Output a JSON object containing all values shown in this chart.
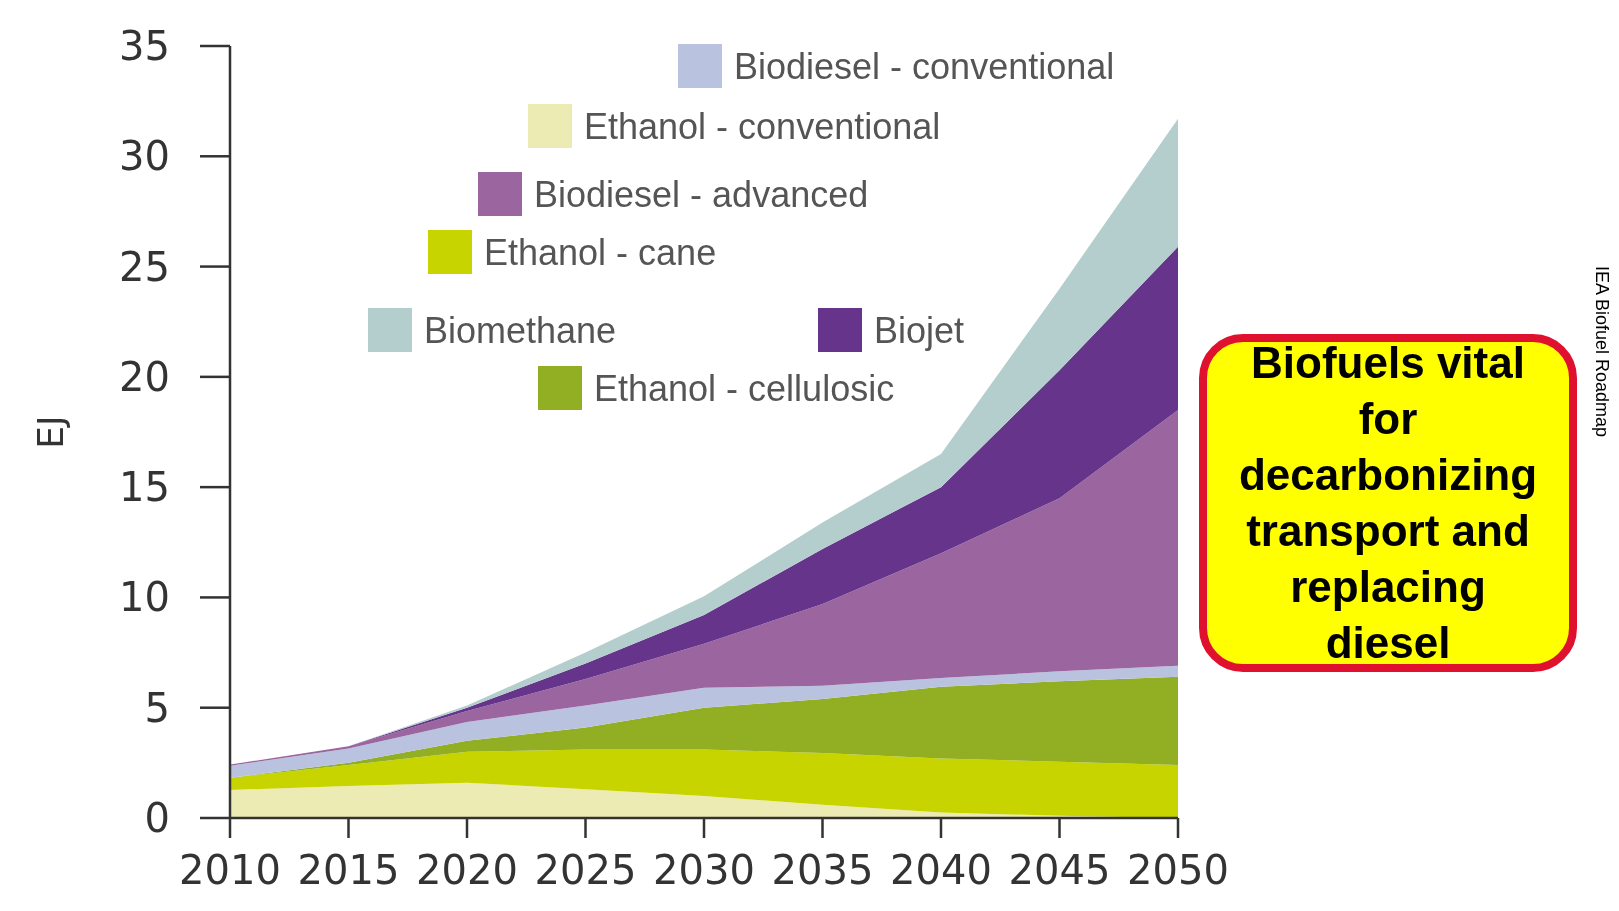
{
  "chart_data": {
    "type": "area",
    "stacked": true,
    "ylabel": "EJ",
    "x": [
      2010,
      2015,
      2020,
      2025,
      2030,
      2035,
      2040,
      2045,
      2050
    ],
    "xlim": [
      2010,
      2050
    ],
    "xticks": [
      2010,
      2015,
      2020,
      2025,
      2030,
      2035,
      2040,
      2045,
      2050
    ],
    "ylim": [
      0,
      35
    ],
    "yticks": [
      0,
      5,
      10,
      15,
      20,
      25,
      30,
      35
    ],
    "grid": false,
    "legend": "top",
    "series": [
      {
        "name": "Ethanol - conventional",
        "color": "#ecebb3",
        "values": [
          1.27,
          1.45,
          1.6,
          1.3,
          1.0,
          0.6,
          0.25,
          0.1,
          0
        ]
      },
      {
        "name": "Ethanol - cane",
        "color": "#c8d400",
        "values": [
          0.55,
          0.95,
          1.4,
          1.8,
          2.1,
          2.35,
          2.45,
          2.45,
          2.4
        ]
      },
      {
        "name": "Ethanol - cellulosic",
        "color": "#92ae22",
        "values": [
          0,
          0.1,
          0.5,
          1.0,
          1.9,
          2.45,
          3.25,
          3.65,
          4.0
        ]
      },
      {
        "name": "Biodiesel - conventional",
        "color": "#b9c3e0",
        "values": [
          0.55,
          0.65,
          0.85,
          1.0,
          0.9,
          0.6,
          0.4,
          0.45,
          0.5
        ]
      },
      {
        "name": "Biodiesel - advanced",
        "color": "#9b669f",
        "values": [
          0.05,
          0.1,
          0.5,
          1.2,
          2.0,
          3.7,
          5.65,
          7.85,
          11.6
        ]
      },
      {
        "name": "Biojet",
        "color": "#67348b",
        "values": [
          0,
          0,
          0.15,
          0.7,
          1.3,
          2.5,
          3.0,
          5.8,
          7.4
        ]
      },
      {
        "name": "Biomethane",
        "color": "#b4cdcd",
        "values": [
          0,
          0,
          0.1,
          0.5,
          0.85,
          1.2,
          1.5,
          3.7,
          5.8
        ]
      }
    ],
    "annotations": [
      "Biofuels vital for decarbonizing transport and replacing diesel",
      "IEA Biofuel Roadmap"
    ]
  }
}
